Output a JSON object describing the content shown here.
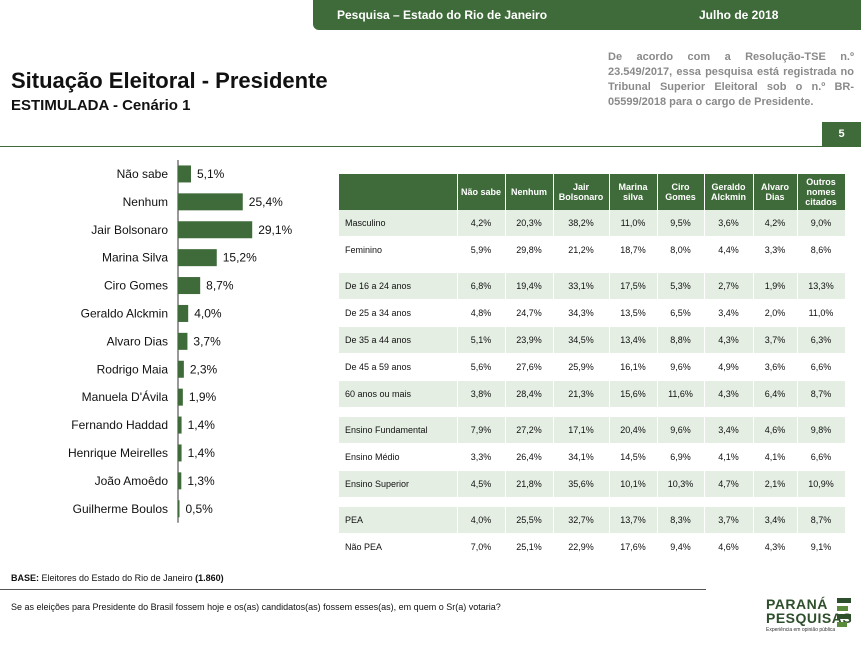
{
  "header": {
    "survey": "Pesquisa – Estado do Rio de Janeiro",
    "date": "Julho de 2018"
  },
  "title": "Situação Eleitoral - Presidente",
  "subtitle": "ESTIMULADA - Cenário 1",
  "resolution": "De acordo com a Resolução-TSE n.º 23.549/2017, essa pesquisa está registrada no Tribunal Superior Eleitoral sob o n.º BR-05599/2018 para o cargo de Presidente.",
  "page_number": "5",
  "base": {
    "label": "BASE:",
    "text": "Eleitores do Estado do Rio de Janeiro",
    "n": "(1.860)"
  },
  "question": "Se as eleições para Presidente do Brasil fossem hoje e os(as) candidatos(as) fossem esses(as), em quem o Sr(a) votaria?",
  "logo": {
    "line1": "PARANÁ",
    "line2": "PESQUISAS",
    "tagline": "Experiência em opinião pública"
  },
  "colors": {
    "accent": "#3f6b3a",
    "row_shade": "#e4eee3"
  },
  "chart_data": [
    {
      "type": "bar",
      "orientation": "horizontal",
      "categories": [
        "Não sabe",
        "Nenhum",
        "Jair Bolsonaro",
        "Marina Silva",
        "Ciro Gomes",
        "Geraldo Alckmin",
        "Alvaro Dias",
        "Rodrigo Maia",
        "Manuela D'Ávila",
        "Fernando Haddad",
        "Henrique Meirelles",
        "João Amoêdo",
        "Guilherme Boulos"
      ],
      "values": [
        5.1,
        25.4,
        29.1,
        15.2,
        8.7,
        4.0,
        3.7,
        2.3,
        1.9,
        1.4,
        1.4,
        1.3,
        0.5
      ],
      "labels": [
        "5,1%",
        "25,4%",
        "29,1%",
        "15,2%",
        "8,7%",
        "4,0%",
        "3,7%",
        "2,3%",
        "1,9%",
        "1,4%",
        "1,4%",
        "1,3%",
        "0,5%"
      ],
      "xlim": [
        0,
        100
      ]
    },
    {
      "type": "table",
      "columns": [
        "",
        "Não sabe",
        "Nenhum",
        "Jair Bolsonaro",
        "Marina silva",
        "Ciro Gomes",
        "Geraldo Alckmin",
        "Alvaro Dias",
        "Outros nomes citados"
      ],
      "groups": [
        {
          "rows": [
            [
              "Masculino",
              "4,2%",
              "20,3%",
              "38,2%",
              "11,0%",
              "9,5%",
              "3,6%",
              "4,2%",
              "9,0%"
            ],
            [
              "Feminino",
              "5,9%",
              "29,8%",
              "21,2%",
              "18,7%",
              "8,0%",
              "4,4%",
              "3,3%",
              "8,6%"
            ]
          ]
        },
        {
          "rows": [
            [
              "De 16 a 24 anos",
              "6,8%",
              "19,4%",
              "33,1%",
              "17,5%",
              "5,3%",
              "2,7%",
              "1,9%",
              "13,3%"
            ],
            [
              "De 25 a 34 anos",
              "4,8%",
              "24,7%",
              "34,3%",
              "13,5%",
              "6,5%",
              "3,4%",
              "2,0%",
              "11,0%"
            ],
            [
              "De 35 a 44 anos",
              "5,1%",
              "23,9%",
              "34,5%",
              "13,4%",
              "8,8%",
              "4,3%",
              "3,7%",
              "6,3%"
            ],
            [
              "De 45 a 59 anos",
              "5,6%",
              "27,6%",
              "25,9%",
              "16,1%",
              "9,6%",
              "4,9%",
              "3,6%",
              "6,6%"
            ],
            [
              "60 anos ou mais",
              "3,8%",
              "28,4%",
              "21,3%",
              "15,6%",
              "11,6%",
              "4,3%",
              "6,4%",
              "8,7%"
            ]
          ]
        },
        {
          "rows": [
            [
              "Ensino Fundamental",
              "7,9%",
              "27,2%",
              "17,1%",
              "20,4%",
              "9,6%",
              "3,4%",
              "4,6%",
              "9,8%"
            ],
            [
              "Ensino Médio",
              "3,3%",
              "26,4%",
              "34,1%",
              "14,5%",
              "6,9%",
              "4,1%",
              "4,1%",
              "6,6%"
            ],
            [
              "Ensino Superior",
              "4,5%",
              "21,8%",
              "35,6%",
              "10,1%",
              "10,3%",
              "4,7%",
              "2,1%",
              "10,9%"
            ]
          ]
        },
        {
          "rows": [
            [
              "PEA",
              "4,0%",
              "25,5%",
              "32,7%",
              "13,7%",
              "8,3%",
              "3,7%",
              "3,4%",
              "8,7%"
            ],
            [
              "Não PEA",
              "7,0%",
              "25,1%",
              "22,9%",
              "17,6%",
              "9,4%",
              "4,6%",
              "4,3%",
              "9,1%"
            ]
          ]
        }
      ]
    }
  ]
}
